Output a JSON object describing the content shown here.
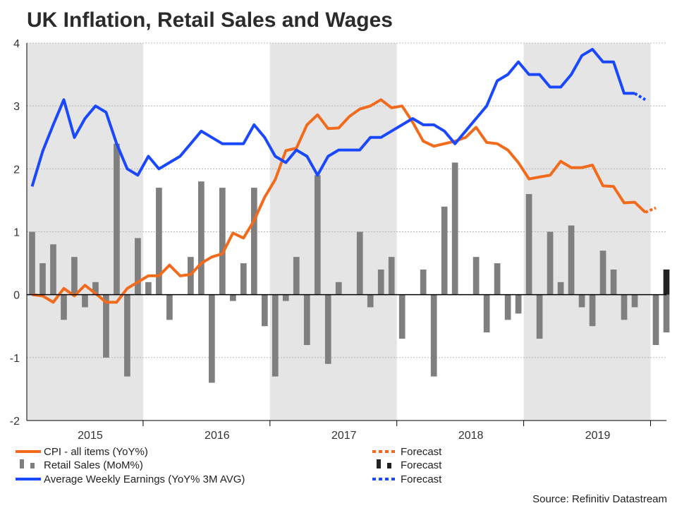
{
  "chart_data": {
    "type": "bar+line",
    "title": "UK Inflation, Retail Sales and Wages",
    "source": "Source: Refinitiv Datastream",
    "ylim": [
      -2,
      4
    ],
    "yticks": [
      -2,
      -1,
      0,
      1,
      2,
      3,
      4
    ],
    "ytick_labels": [
      "-2",
      "-1",
      "0",
      "1",
      "2",
      "3",
      "4"
    ],
    "x_range_months": [
      0,
      60.5
    ],
    "year_labels": [
      {
        "label": "2015",
        "center_month": 6
      },
      {
        "label": "2016",
        "center_month": 18
      },
      {
        "label": "2017",
        "center_month": 30
      },
      {
        "label": "2018",
        "center_month": 42
      },
      {
        "label": "2019",
        "center_month": 54
      }
    ],
    "shaded_years": [
      {
        "start_month": 0,
        "end_month": 11
      },
      {
        "start_month": 23,
        "end_month": 35
      },
      {
        "start_month": 47,
        "end_month": 59
      }
    ],
    "year_boundaries": [
      11,
      23,
      35,
      47,
      59
    ],
    "series": [
      {
        "name": "Retail Sales (MoM%)",
        "type": "bar",
        "color": "#7f7f7f",
        "start_month": 0,
        "values": [
          1.0,
          0.5,
          0.8,
          -0.4,
          0.6,
          -0.2,
          0.2,
          -1.0,
          2.4,
          -1.3,
          0.9,
          0.2,
          1.7,
          -0.4,
          0.0,
          0.6,
          1.8,
          -1.4,
          1.7,
          -0.1,
          0.5,
          1.7,
          -0.5,
          -1.3,
          -0.1,
          0.6,
          -0.8,
          1.9,
          -1.1,
          0.2,
          0.0,
          1.0,
          -0.2,
          0.4,
          0.6,
          -0.7,
          0.0,
          0.4,
          -1.3,
          1.4,
          2.1,
          0.0,
          0.6,
          -0.6,
          0.5,
          -0.4,
          -0.3,
          1.6,
          -0.7,
          1.0,
          0.2,
          1.1,
          -0.2,
          -0.5,
          0.7,
          0.4,
          -0.4,
          -0.2,
          0.0,
          -0.8,
          -0.6
        ]
      },
      {
        "name": "Forecast",
        "type": "bar",
        "color": "#222222",
        "start_month": 60,
        "values": [
          0.4
        ]
      },
      {
        "name": "CPI - all items (YoY%)",
        "type": "line",
        "color": "#f26b1d",
        "start_month": 0,
        "values": [
          0.0,
          -0.02,
          -0.12,
          0.1,
          -0.02,
          0.15,
          0.02,
          -0.12,
          -0.12,
          0.1,
          0.2,
          0.3,
          0.3,
          0.47,
          0.3,
          0.32,
          0.5,
          0.6,
          0.65,
          0.98,
          0.9,
          1.18,
          1.55,
          1.83,
          2.29,
          2.33,
          2.7,
          2.86,
          2.64,
          2.65,
          2.83,
          2.95,
          3.0,
          3.1,
          2.97,
          3.0,
          2.74,
          2.44,
          2.36,
          2.4,
          2.44,
          2.5,
          2.66,
          2.42,
          2.4,
          2.3,
          2.1,
          1.84,
          1.87,
          1.9,
          2.12,
          2.02,
          2.02,
          2.06,
          1.73,
          1.72,
          1.46,
          1.47,
          1.31
        ]
      },
      {
        "name": "Forecast",
        "type": "line",
        "dash": true,
        "color": "#f26b1d",
        "start_month": 58,
        "values": [
          1.31,
          1.38
        ]
      },
      {
        "name": "Average Weekly Earnings (YoY% 3M AVG)",
        "type": "line",
        "color": "#1a48ff",
        "start_month": 0,
        "values": [
          1.72,
          2.28,
          2.7,
          3.1,
          2.5,
          2.8,
          3.0,
          2.9,
          2.4,
          2.0,
          1.9,
          2.2,
          2.0,
          2.1,
          2.2,
          2.4,
          2.6,
          2.5,
          2.4,
          2.4,
          2.4,
          2.7,
          2.5,
          2.2,
          2.1,
          2.3,
          2.2,
          1.9,
          2.2,
          2.3,
          2.3,
          2.3,
          2.5,
          2.5,
          2.6,
          2.7,
          2.8,
          2.7,
          2.7,
          2.6,
          2.4,
          2.6,
          2.8,
          3.0,
          3.4,
          3.5,
          3.7,
          3.5,
          3.5,
          3.3,
          3.3,
          3.5,
          3.8,
          3.9,
          3.7,
          3.7,
          3.2,
          3.2
        ]
      },
      {
        "name": "Forecast",
        "type": "line",
        "dash": true,
        "color": "#1a48ff",
        "start_month": 57,
        "values": [
          3.2,
          3.1
        ]
      }
    ],
    "legend": [
      {
        "label": "CPI - all items (YoY%)",
        "style": "line",
        "color": "#f26b1d"
      },
      {
        "label": "Retail Sales (MoM%)",
        "style": "dashed-bar",
        "color": "#7f7f7f"
      },
      {
        "label": "Average Weekly Earnings (YoY% 3M AVG)",
        "style": "line",
        "color": "#1a48ff"
      },
      {
        "label": "Forecast",
        "style": "dotted-line",
        "color": "#f26b1d"
      },
      {
        "label": "Forecast",
        "style": "dashed-bar",
        "color": "#222222"
      },
      {
        "label": "Forecast",
        "style": "dotted-line",
        "color": "#1a48ff"
      }
    ],
    "colors": {
      "shade": "#e5e5e5",
      "grid": "#b5b5b5",
      "axis": "#000000"
    }
  }
}
